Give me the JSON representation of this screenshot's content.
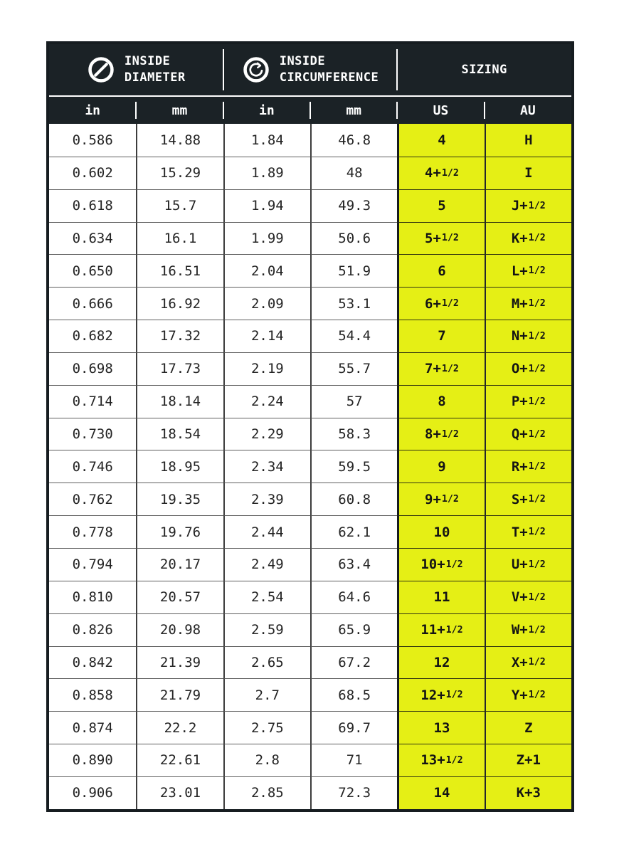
{
  "header": {
    "groups": [
      {
        "icon": "diameter-icon",
        "line1": "INSIDE",
        "line2": "DIAMETER"
      },
      {
        "icon": "circumference-icon",
        "line1": "INSIDE",
        "line2": "CIRCUMFERENCE"
      },
      {
        "label": "SIZING"
      }
    ],
    "subcolumns": [
      "in",
      "mm",
      "in",
      "mm",
      "US",
      "AU"
    ]
  },
  "icons": {
    "diameter": "circle-with-diagonal-line",
    "circumference": "ring-with-circular-arrow"
  },
  "colors": {
    "header_bg": "#1b2226",
    "highlight_yellow": "#e5ef15",
    "page_bg": "#ffffff",
    "header_text": "#ffffff",
    "data_text": "#232323",
    "outer_border": "#161c20"
  },
  "chart_data": {
    "type": "table",
    "title": "Ring size conversion table",
    "columns": [
      "inside_diameter_in",
      "inside_diameter_mm",
      "inside_circumference_in",
      "inside_circumference_mm",
      "us_size",
      "au_size"
    ],
    "rows": [
      [
        "0.586",
        "14.88",
        "1.84",
        "46.8",
        "4",
        "H"
      ],
      [
        "0.602",
        "15.29",
        "1.89",
        "48",
        "4+1/2",
        "I"
      ],
      [
        "0.618",
        "15.7",
        "1.94",
        "49.3",
        "5",
        "J+1/2"
      ],
      [
        "0.634",
        "16.1",
        "1.99",
        "50.6",
        "5+1/2",
        "K+1/2"
      ],
      [
        "0.650",
        "16.51",
        "2.04",
        "51.9",
        "6",
        "L+1/2"
      ],
      [
        "0.666",
        "16.92",
        "2.09",
        "53.1",
        "6+1/2",
        "M+1/2"
      ],
      [
        "0.682",
        "17.32",
        "2.14",
        "54.4",
        "7",
        "N+1/2"
      ],
      [
        "0.698",
        "17.73",
        "2.19",
        "55.7",
        "7+1/2",
        "O+1/2"
      ],
      [
        "0.714",
        "18.14",
        "2.24",
        "57",
        "8",
        "P+1/2"
      ],
      [
        "0.730",
        "18.54",
        "2.29",
        "58.3",
        "8+1/2",
        "Q+1/2"
      ],
      [
        "0.746",
        "18.95",
        "2.34",
        "59.5",
        "9",
        "R+1/2"
      ],
      [
        "0.762",
        "19.35",
        "2.39",
        "60.8",
        "9+1/2",
        "S+1/2"
      ],
      [
        "0.778",
        "19.76",
        "2.44",
        "62.1",
        "10",
        "T+1/2"
      ],
      [
        "0.794",
        "20.17",
        "2.49",
        "63.4",
        "10+1/2",
        "U+1/2"
      ],
      [
        "0.810",
        "20.57",
        "2.54",
        "64.6",
        "11",
        "V+1/2"
      ],
      [
        "0.826",
        "20.98",
        "2.59",
        "65.9",
        "11+1/2",
        "W+1/2"
      ],
      [
        "0.842",
        "21.39",
        "2.65",
        "67.2",
        "12",
        "X+1/2"
      ],
      [
        "0.858",
        "21.79",
        "2.7",
        "68.5",
        "12+1/2",
        "Y+1/2"
      ],
      [
        "0.874",
        "22.2",
        "2.75",
        "69.7",
        "13",
        "Z"
      ],
      [
        "0.890",
        "22.61",
        "2.8",
        "71",
        "13+1/2",
        "Z+1"
      ],
      [
        "0.906",
        "23.01",
        "2.85",
        "72.3",
        "14",
        "K+3"
      ]
    ]
  }
}
